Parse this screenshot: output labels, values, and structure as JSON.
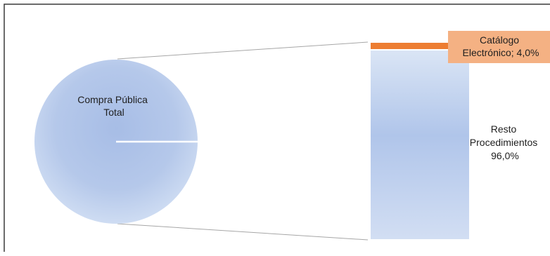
{
  "chart_data": {
    "type": "pie",
    "subtype": "bar-of-pie",
    "main_pie": {
      "label_lines": [
        "Compra Pública",
        "Total"
      ]
    },
    "breakdown_bar": [
      {
        "name": "Catálogo Electrónico",
        "value": 4.0,
        "label_lines": [
          "Catálogo",
          "Electrónico; 4,0%"
        ],
        "color": "#ED7D31",
        "label_box_color": "#F4B183"
      },
      {
        "name": "Resto Procedimientos",
        "value": 96.0,
        "label_lines": [
          "Resto",
          "Procedimientos",
          "96,0%"
        ],
        "color": "#B4C7E7"
      }
    ],
    "total": 100,
    "unit": "%",
    "legend": "none",
    "grid": false
  }
}
